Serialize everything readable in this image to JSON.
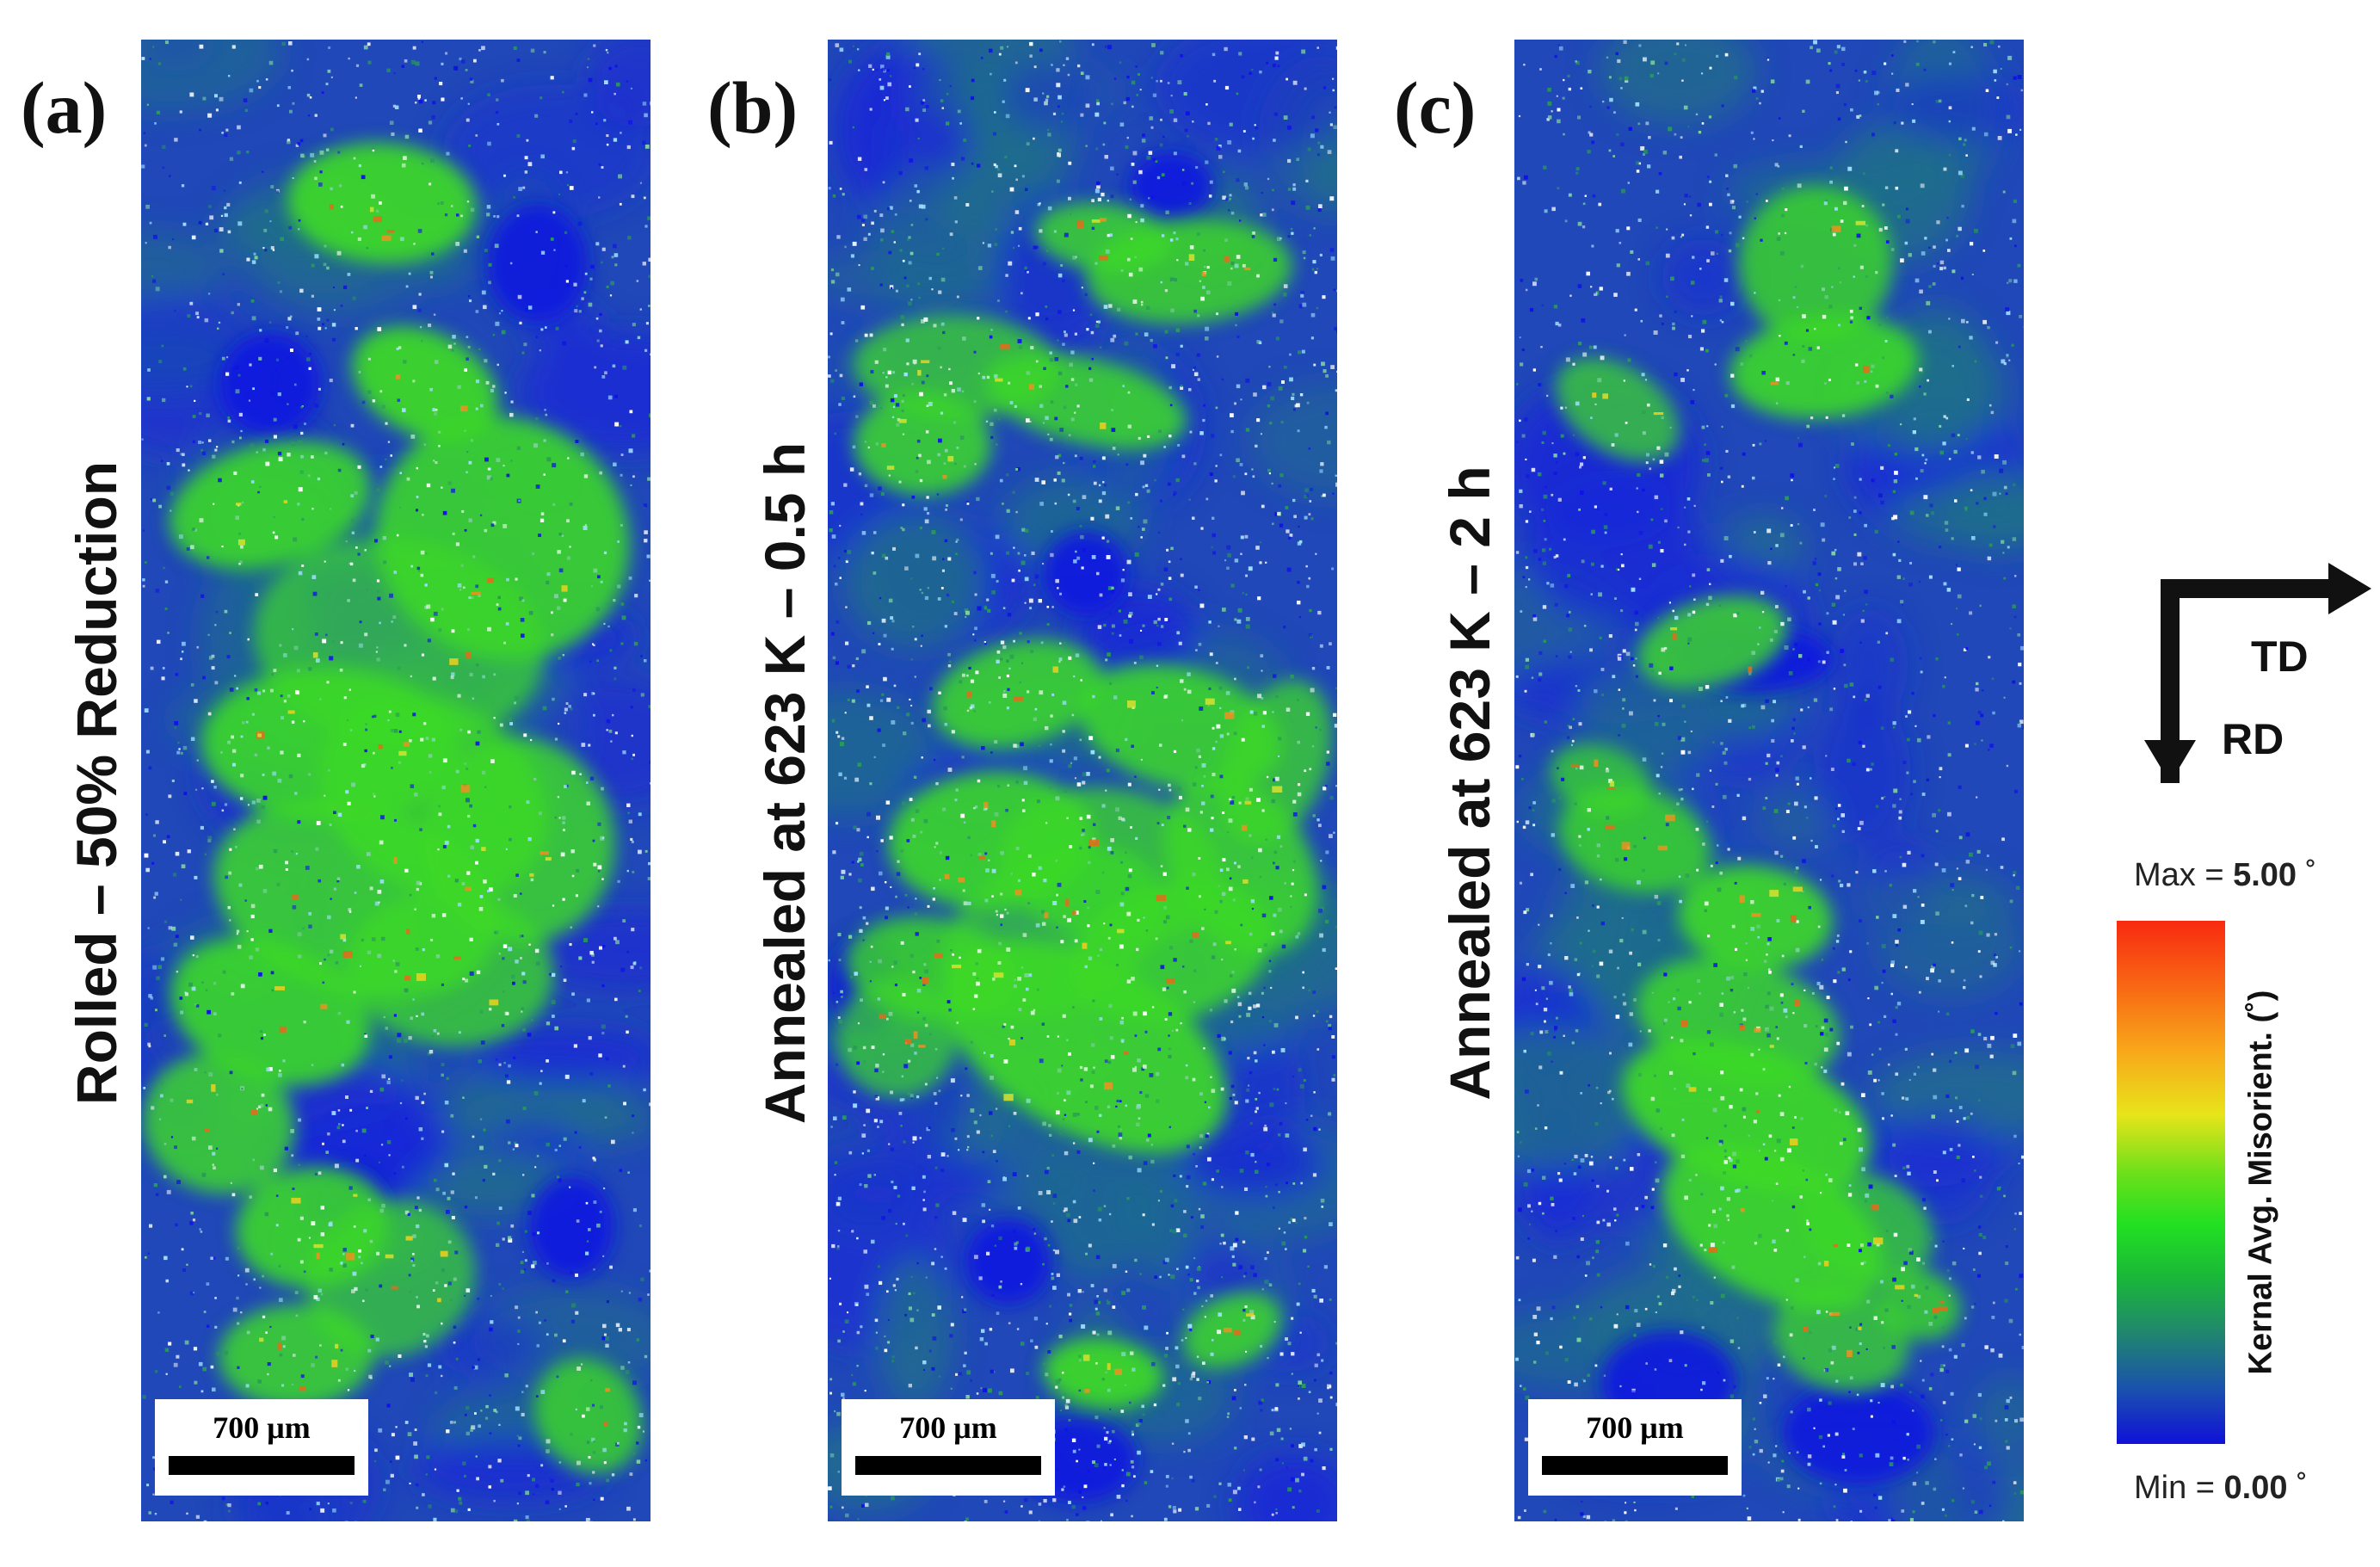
{
  "panels": [
    {
      "letter": "(a)",
      "label": "Rolled – 50% Reduction",
      "scale_bar": "700 μm"
    },
    {
      "letter": "(b)",
      "label": "Annealed at 623 K – 0.5 h",
      "scale_bar": "700 μm"
    },
    {
      "letter": "(c)",
      "label": "Annealed at 623 K – 2 h",
      "scale_bar": "700 μm"
    }
  ],
  "axes": {
    "horizontal": "TD",
    "vertical": "RD"
  },
  "legend": {
    "title": "Kernal Avg. Misorient. (˚)",
    "max_prefix": "Max = ",
    "max_value": "5.00",
    "min_prefix": "Min = ",
    "min_value": "0.00",
    "unit": " ˚",
    "colors": [
      "#1010d8",
      "#208a6a",
      "#22e022",
      "#e8e41a",
      "#f86a14",
      "#f82a10"
    ]
  }
}
